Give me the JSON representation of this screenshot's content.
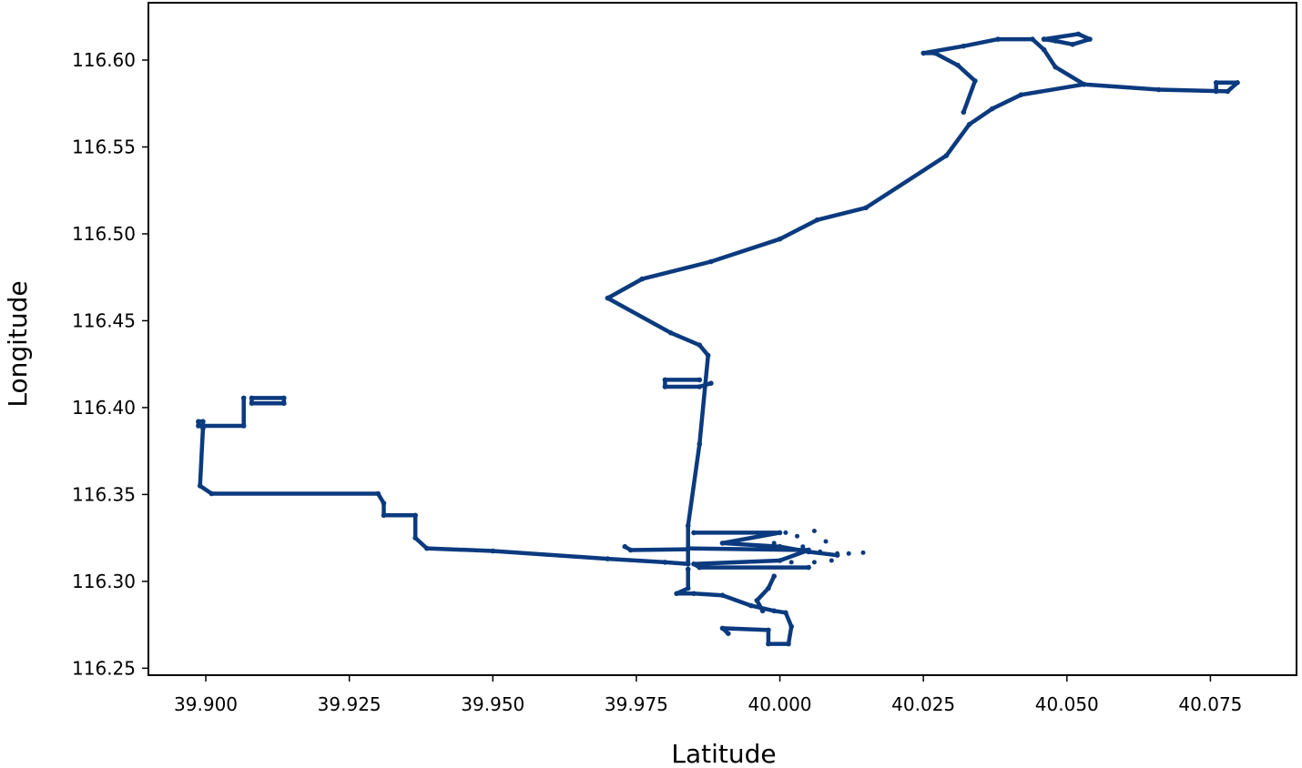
{
  "chart_data": {
    "type": "scatter",
    "title": "",
    "xlabel": "Latitude",
    "ylabel": "Longitude",
    "xlim": [
      39.89,
      40.09
    ],
    "ylim": [
      116.246,
      116.633
    ],
    "xticks": [
      39.9,
      39.925,
      39.95,
      39.975,
      40.0,
      40.025,
      40.05,
      40.075
    ],
    "xtick_labels": [
      "39.900",
      "39.925",
      "39.950",
      "39.975",
      "40.000",
      "40.025",
      "40.050",
      "40.075"
    ],
    "yticks": [
      116.25,
      116.3,
      116.35,
      116.4,
      116.45,
      116.5,
      116.55,
      116.6
    ],
    "ytick_labels": [
      "116.25",
      "116.30",
      "116.35",
      "116.40",
      "116.45",
      "116.50",
      "116.55",
      "116.60"
    ],
    "grid": false,
    "marker_color": "#0b3a7e",
    "series": [
      {
        "paths": [
          [
            [
              39.9136,
              116.4025
            ],
            [
              39.908,
              116.4025
            ],
            [
              39.908,
              116.4055
            ],
            [
              39.9136,
              116.4055
            ],
            [
              39.9136,
              116.4025
            ]
          ],
          [
            [
              39.9066,
              116.4055
            ],
            [
              39.9066,
              116.3895
            ],
            [
              39.8987,
              116.3895
            ],
            [
              39.8987,
              116.392
            ],
            [
              39.8995,
              116.392
            ],
            [
              39.8995,
              116.388
            ],
            [
              39.899,
              116.355
            ],
            [
              39.901,
              116.3505
            ],
            [
              39.93,
              116.3505
            ],
            [
              39.931,
              116.345
            ],
            [
              39.931,
              116.338
            ],
            [
              39.9365,
              116.338
            ],
            [
              39.9365,
              116.325
            ],
            [
              39.9385,
              116.319
            ],
            [
              39.95,
              116.3175
            ],
            [
              39.97,
              116.313
            ],
            [
              39.98,
              116.311
            ],
            [
              39.984,
              116.31
            ]
          ],
          [
            [
              39.984,
              116.31
            ],
            [
              39.984,
              116.332
            ],
            [
              39.986,
              116.379
            ],
            [
              39.9875,
              116.43
            ],
            [
              39.986,
              116.436
            ],
            [
              39.981,
              116.443
            ],
            [
              39.97,
              116.463
            ],
            [
              39.976,
              116.474
            ],
            [
              39.988,
              116.484
            ],
            [
              40.0,
              116.497
            ],
            [
              40.0065,
              116.508
            ],
            [
              40.015,
              116.515
            ],
            [
              40.029,
              116.545
            ],
            [
              40.033,
              116.563
            ],
            [
              40.037,
              116.572
            ],
            [
              40.042,
              116.58
            ],
            [
              40.053,
              116.586
            ]
          ],
          [
            [
              40.053,
              116.586
            ],
            [
              40.066,
              116.583
            ],
            [
              40.078,
              116.582
            ],
            [
              40.0797,
              116.587
            ],
            [
              40.076,
              116.587
            ],
            [
              40.076,
              116.582
            ]
          ],
          [
            [
              40.053,
              116.586
            ],
            [
              40.048,
              116.596
            ],
            [
              40.046,
              116.606
            ],
            [
              40.044,
              116.612
            ],
            [
              40.038,
              116.612
            ],
            [
              40.032,
              116.608
            ],
            [
              40.025,
              116.604
            ],
            [
              40.027,
              116.604
            ],
            [
              40.031,
              116.597
            ],
            [
              40.034,
              116.588
            ],
            [
              40.032,
              116.57
            ]
          ],
          [
            [
              40.046,
              116.612
            ],
            [
              40.052,
              116.615
            ],
            [
              40.054,
              116.612
            ],
            [
              40.051,
              116.609
            ],
            [
              40.048,
              116.611
            ],
            [
              40.046,
              116.612
            ]
          ],
          [
            [
              39.986,
              116.416
            ],
            [
              39.98,
              116.416
            ],
            [
              39.98,
              116.412
            ],
            [
              39.986,
              116.412
            ],
            [
              39.988,
              116.414
            ]
          ],
          [
            [
              39.985,
              116.328
            ],
            [
              40.0,
              116.328
            ],
            [
              39.99,
              116.322
            ],
            [
              40.0,
              116.32
            ],
            [
              40.005,
              116.317
            ],
            [
              40.01,
              116.315
            ]
          ],
          [
            [
              39.984,
              116.319
            ],
            [
              40.005,
              116.318
            ],
            [
              40.0,
              116.312
            ],
            [
              39.985,
              116.31
            ],
            [
              39.986,
              116.308
            ],
            [
              40.005,
              116.308
            ]
          ],
          [
            [
              39.973,
              116.32
            ],
            [
              39.974,
              116.318
            ],
            [
              39.984,
              116.3185
            ]
          ],
          [
            [
              39.984,
              116.307
            ],
            [
              39.984,
              116.296
            ],
            [
              39.982,
              116.293
            ],
            [
              39.985,
              116.293
            ],
            [
              39.99,
              116.292
            ],
            [
              39.995,
              116.286
            ],
            [
              39.999,
              116.283
            ],
            [
              40.001,
              116.282
            ],
            [
              40.002,
              116.274
            ],
            [
              40.0015,
              116.264
            ],
            [
              39.998,
              116.264
            ],
            [
              39.998,
              116.272
            ],
            [
              39.99,
              116.273
            ],
            [
              39.991,
              116.27
            ]
          ],
          [
            [
              39.997,
              116.283
            ],
            [
              39.996,
              116.289
            ],
            [
              39.998,
              116.296
            ],
            [
              39.999,
              116.303
            ]
          ]
        ],
        "scatter": [
          [
            40.001,
            116.328
          ],
          [
            40.003,
            116.326
          ],
          [
            40.006,
            116.329
          ],
          [
            40.008,
            116.323
          ],
          [
            40.007,
            116.317
          ],
          [
            40.01,
            116.316
          ],
          [
            40.012,
            116.316
          ],
          [
            40.0145,
            116.3165
          ],
          [
            40.009,
            116.312
          ],
          [
            40.002,
            116.311
          ],
          [
            40.006,
            116.311
          ],
          [
            39.999,
            116.322
          ],
          [
            40.004,
            116.32
          ]
        ]
      }
    ]
  }
}
